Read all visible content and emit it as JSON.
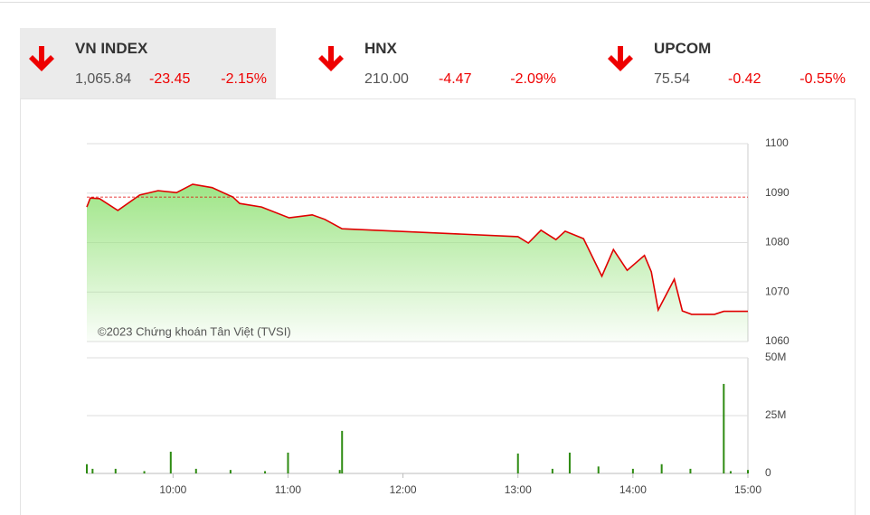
{
  "tickers": [
    {
      "name": "VN INDEX",
      "price": "1,065.84",
      "change": "-23.45",
      "percent": "-2.15%"
    },
    {
      "name": "HNX",
      "price": "210.00",
      "change": "-4.47",
      "percent": "-2.09%"
    },
    {
      "name": "UPCOM",
      "price": "75.54",
      "change": "-0.42",
      "percent": "-0.55%"
    }
  ],
  "chart_data": [
    {
      "type": "area",
      "watermark": "©2023 Chứng khoán Tân Việt (TVSI)",
      "x": [
        9.25,
        9.28,
        9.36,
        9.52,
        9.71,
        9.87,
        10.03,
        10.17,
        10.34,
        10.52,
        10.58,
        10.77,
        11.01,
        11.21,
        11.32,
        11.47,
        13.0,
        13.09,
        13.2,
        13.33,
        13.41,
        13.57,
        13.73,
        13.83,
        13.95,
        14.1,
        14.16,
        14.22,
        14.36,
        14.43,
        14.51,
        14.71,
        14.79,
        15.0
      ],
      "values": [
        1087.2,
        1089.0,
        1088.9,
        1086.5,
        1089.6,
        1090.5,
        1090.1,
        1091.8,
        1091.1,
        1089.2,
        1087.9,
        1087.2,
        1085.0,
        1085.6,
        1084.7,
        1082.8,
        1081.2,
        1079.9,
        1082.5,
        1080.6,
        1082.3,
        1080.8,
        1073.2,
        1078.6,
        1074.4,
        1077.4,
        1074.1,
        1066.4,
        1072.6,
        1066.2,
        1065.5,
        1065.5,
        1066.1,
        1066.1
      ],
      "color": "#e00000",
      "fill_color": "#9ee586",
      "reference": 1089.2,
      "reference_color": "#e00000",
      "xlim": [
        9.25,
        15.0
      ],
      "ylim": [
        1060,
        1100
      ],
      "yticks": [
        1060,
        1070,
        1080,
        1090,
        1100
      ],
      "grid": true
    },
    {
      "type": "bar",
      "x": [
        9.25,
        9.3,
        9.5,
        9.75,
        9.98,
        10.2,
        10.5,
        10.8,
        11.0,
        11.45,
        11.47,
        13.0,
        13.3,
        13.45,
        13.7,
        14.0,
        14.25,
        14.5,
        14.79,
        14.85,
        15.0
      ],
      "values": [
        4,
        2,
        2,
        1,
        9.4,
        2,
        1.5,
        1,
        9,
        1.5,
        18.4,
        8.6,
        2,
        9,
        3,
        2,
        4,
        2,
        38.7,
        1,
        1.5
      ],
      "color": "#2e8b12",
      "xlim": [
        9.25,
        15.0
      ],
      "ylim": [
        0,
        50
      ],
      "yticks": [
        0,
        {
          "value": 25,
          "label": "25M"
        },
        {
          "value": 50,
          "label": "50M"
        }
      ],
      "xticks": [
        {
          "value": 10,
          "label": "10:00"
        },
        {
          "value": 11,
          "label": "11:00"
        },
        {
          "value": 12,
          "label": "12:00"
        },
        {
          "value": 13,
          "label": "13:00"
        },
        {
          "value": 14,
          "label": "14:00"
        },
        {
          "value": 15,
          "label": "15:00"
        }
      ],
      "grid": true
    }
  ]
}
